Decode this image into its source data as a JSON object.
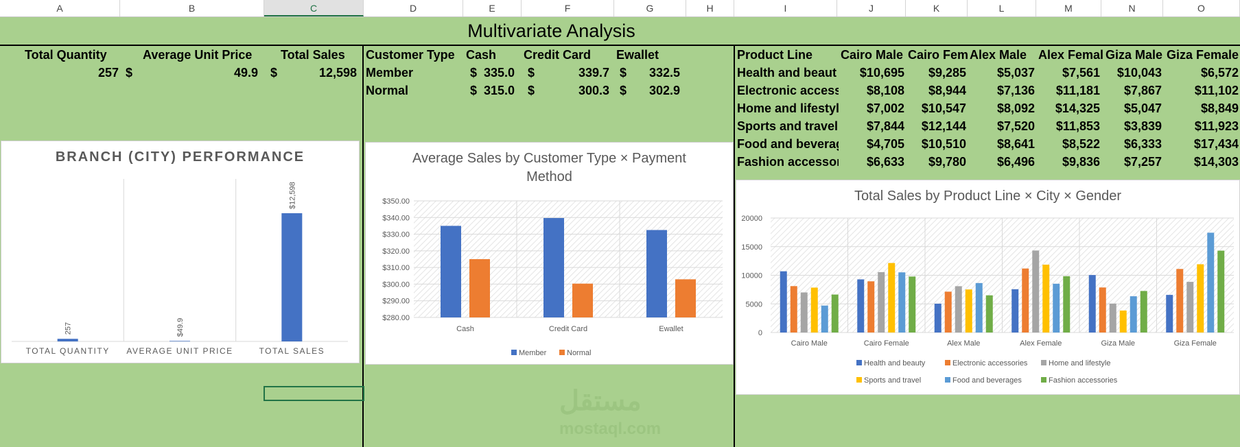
{
  "sheet": {
    "columns": [
      "A",
      "B",
      "C",
      "D",
      "E",
      "F",
      "G",
      "H",
      "I",
      "J",
      "K",
      "L",
      "M",
      "N",
      "O"
    ],
    "selected_column": "C",
    "title": "Multivariate Analysis"
  },
  "summary": {
    "headers": [
      "Total Quantity",
      "Average Unit Price",
      "Total Sales"
    ],
    "currency": "$",
    "total_quantity": "257",
    "avg_unit_price": "49.9",
    "total_sales": "12,598"
  },
  "customer_table": {
    "headers": [
      "Customer Type",
      "Cash",
      "Credit Card",
      "Ewallet"
    ],
    "rows": [
      {
        "label": "Member",
        "cash": "335.0",
        "credit": "339.7",
        "ewallet": "332.5"
      },
      {
        "label": "Normal",
        "cash": "315.0",
        "credit": "300.3",
        "ewallet": "302.9"
      }
    ]
  },
  "product_table": {
    "headers": [
      "Product Line",
      "Cairo Male",
      "Cairo Fem",
      "Alex Male",
      "Alex Femal",
      "Giza Male",
      "Giza Female"
    ],
    "rows": [
      {
        "label": "Health and beaut",
        "v": [
          "$10,695",
          "$9,285",
          "$5,037",
          "$7,561",
          "$10,043",
          "$6,572"
        ]
      },
      {
        "label": "Electronic accesso",
        "v": [
          "$8,108",
          "$8,944",
          "$7,136",
          "$11,181",
          "$7,867",
          "$11,102"
        ]
      },
      {
        "label": "Home and lifestyl",
        "v": [
          "$7,002",
          "$10,547",
          "$8,092",
          "$14,325",
          "$5,047",
          "$8,849"
        ]
      },
      {
        "label": "Sports and travel",
        "v": [
          "$7,844",
          "$12,144",
          "$7,520",
          "$11,853",
          "$3,839",
          "$11,923"
        ]
      },
      {
        "label": "Food and beverag",
        "v": [
          "$4,705",
          "$10,510",
          "$8,641",
          "$8,522",
          "$6,333",
          "$17,434"
        ]
      },
      {
        "label": "Fashion accessori",
        "v": [
          "$6,633",
          "$9,780",
          "$6,496",
          "$9,836",
          "$7,257",
          "$14,303"
        ]
      }
    ]
  },
  "watermark": {
    "line1": "مستقل",
    "line2": "mostaql.com"
  },
  "chart_data": [
    {
      "type": "bar",
      "title": "BRANCH (CITY) PERFORMANCE",
      "categories": [
        "TOTAL QUANTITY",
        "AVERAGE UNIT PRICE",
        "TOTAL SALES"
      ],
      "values": [
        257,
        49.9,
        12598
      ],
      "data_labels": [
        "257",
        "$49.9",
        "$12,598"
      ],
      "color": "#4472c4",
      "grid": false
    },
    {
      "type": "bar",
      "title": "Average Sales by Customer Type × Payment Method",
      "categories": [
        "Cash",
        "Credit Card",
        "Ewallet"
      ],
      "series": [
        {
          "name": "Member",
          "values": [
            335.0,
            339.7,
            332.5
          ],
          "color": "#4472c4"
        },
        {
          "name": "Normal",
          "values": [
            315.0,
            300.3,
            302.9
          ],
          "color": "#ed7d31"
        }
      ],
      "ylim": [
        280,
        350
      ],
      "yticks": [
        "$280.00",
        "$290.00",
        "$300.00",
        "$310.00",
        "$320.00",
        "$330.00",
        "$340.00",
        "$350.00"
      ],
      "legend": "bottom"
    },
    {
      "type": "bar",
      "title": "Total Sales by Product Line × City × Gender",
      "categories": [
        "Cairo Male",
        "Cairo Female",
        "Alex Male",
        "Alex Female",
        "Giza Male",
        "Giza Female"
      ],
      "series": [
        {
          "name": "Health and beauty",
          "values": [
            10695,
            9285,
            5037,
            7561,
            10043,
            6572
          ],
          "color": "#4472c4"
        },
        {
          "name": "Electronic accessories",
          "values": [
            8108,
            8944,
            7136,
            11181,
            7867,
            11102
          ],
          "color": "#ed7d31"
        },
        {
          "name": "Home and lifestyle",
          "values": [
            7002,
            10547,
            8092,
            14325,
            5047,
            8849
          ],
          "color": "#a5a5a5"
        },
        {
          "name": "Sports and travel",
          "values": [
            7844,
            12144,
            7520,
            11853,
            3839,
            11923
          ],
          "color": "#ffc000"
        },
        {
          "name": "Food and beverages",
          "values": [
            4705,
            10510,
            8641,
            8522,
            6333,
            17434
          ],
          "color": "#5b9bd5"
        },
        {
          "name": "Fashion accessories",
          "values": [
            6633,
            9780,
            6496,
            9836,
            7257,
            14303
          ],
          "color": "#70ad47"
        }
      ],
      "ylim": [
        0,
        20000
      ],
      "yticks": [
        "0",
        "5000",
        "10000",
        "15000",
        "20000"
      ],
      "legend": "bottom"
    }
  ]
}
